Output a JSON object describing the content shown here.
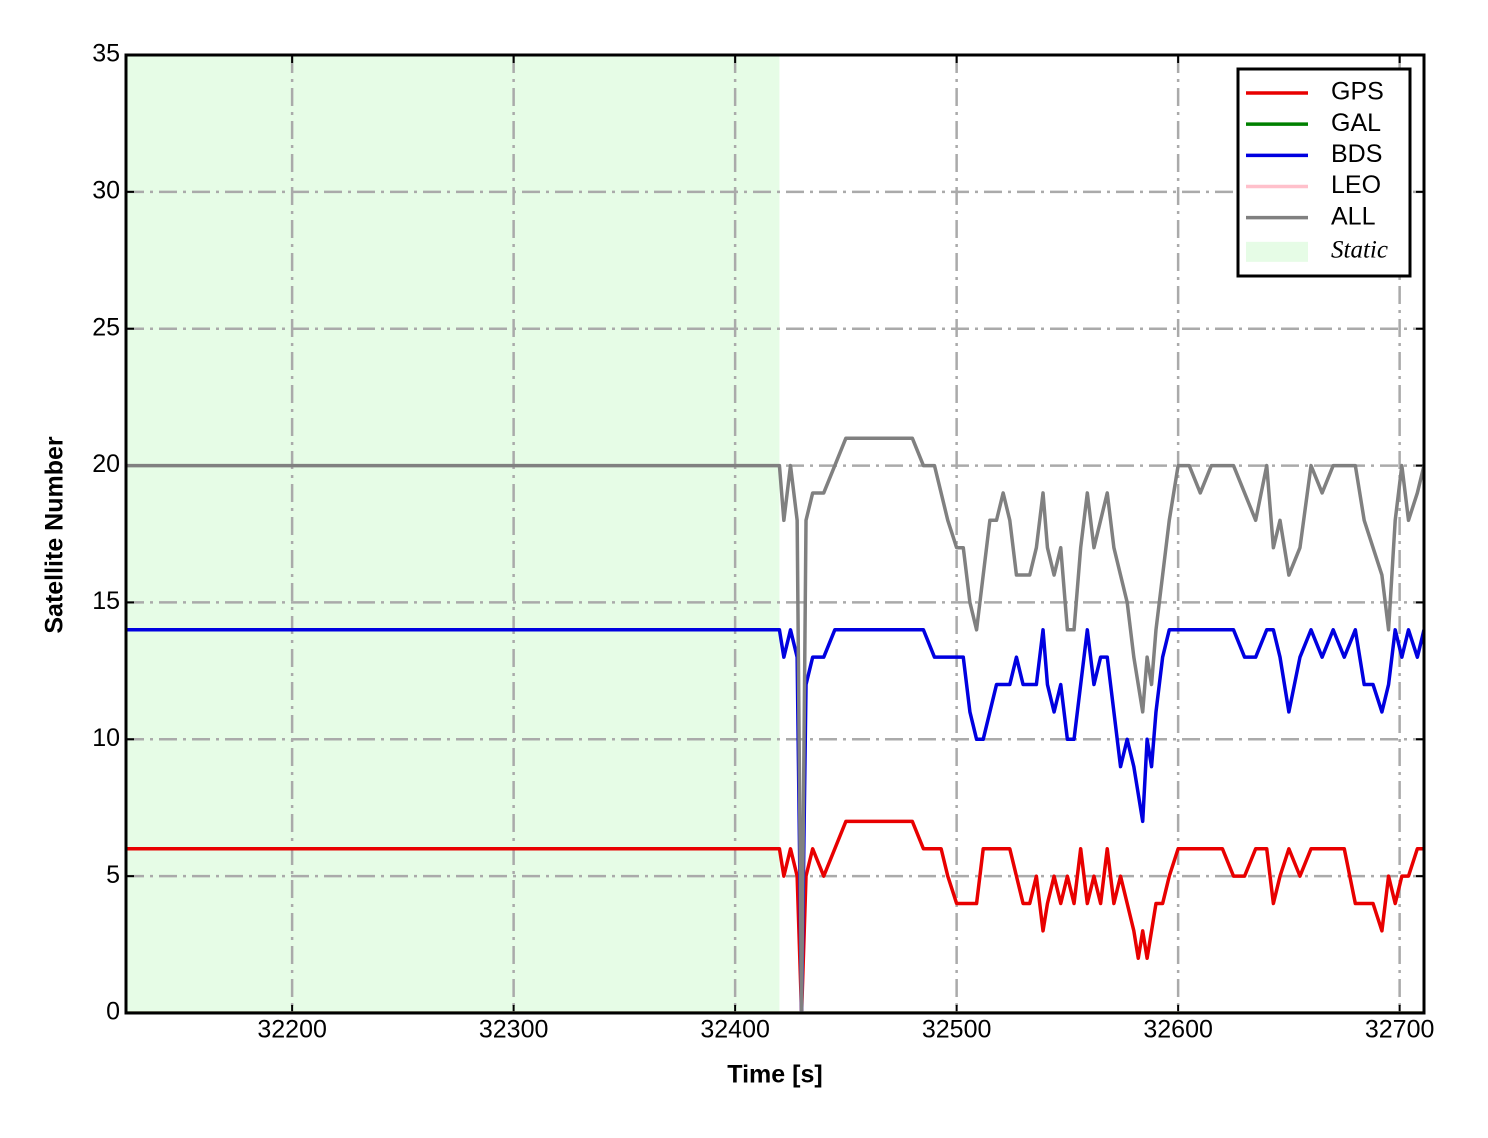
{
  "chart_data": {
    "type": "line",
    "xlabel": "Time [s]",
    "ylabel": "Satellite Number",
    "x": [
      32125,
      32420,
      32422,
      32425,
      32428,
      32430,
      32432,
      32435,
      32440,
      32445,
      32450,
      32455,
      32460,
      32470,
      32480,
      32485,
      32490,
      32493,
      32496,
      32500,
      32503,
      32506,
      32509,
      32512,
      32515,
      32518,
      32521,
      32524,
      32527,
      32530,
      32533,
      32536,
      32539,
      32541,
      32544,
      32547,
      32550,
      32553,
      32556,
      32559,
      32562,
      32565,
      32568,
      32571,
      32574,
      32577,
      32580,
      32582,
      32584,
      32586,
      32588,
      32590,
      32593,
      32596,
      32600,
      32605,
      32610,
      32615,
      32620,
      32625,
      32630,
      32635,
      32640,
      32643,
      32646,
      32650,
      32655,
      32660,
      32665,
      32670,
      32675,
      32680,
      32684,
      32688,
      32692,
      32695,
      32698,
      32701,
      32704,
      32708,
      32711
    ],
    "series": [
      {
        "name": "GPS",
        "color": "#e80000",
        "values": [
          6,
          6,
          5,
          6,
          5,
          0,
          5,
          6,
          5,
          6,
          7,
          7,
          7,
          7,
          7,
          6,
          6,
          6,
          5,
          4,
          4,
          4,
          4,
          6,
          6,
          6,
          6,
          6,
          5,
          4,
          4,
          5,
          3,
          4,
          5,
          4,
          5,
          4,
          6,
          4,
          5,
          4,
          6,
          4,
          5,
          4,
          3,
          2,
          3,
          2,
          3,
          4,
          4,
          5,
          6,
          6,
          6,
          6,
          6,
          5,
          5,
          6,
          6,
          4,
          5,
          6,
          5,
          6,
          6,
          6,
          6,
          4,
          4,
          4,
          3,
          5,
          4,
          5,
          5,
          6,
          6
        ]
      },
      {
        "name": "GAL",
        "color": "#008000",
        "values": [
          0,
          0,
          0,
          0,
          0,
          0,
          0,
          0,
          0,
          0,
          0,
          0,
          0,
          0,
          0,
          0,
          0,
          0,
          0,
          0,
          0,
          0,
          0,
          0,
          0,
          0,
          0,
          0,
          0,
          0,
          0,
          0,
          0,
          0,
          0,
          0,
          0,
          0,
          0,
          0,
          0,
          0,
          0,
          0,
          0,
          0,
          0,
          0,
          0,
          0,
          0,
          0,
          0,
          0,
          0,
          0,
          0,
          0,
          0,
          0,
          0,
          0,
          0,
          0,
          0,
          0,
          0,
          0,
          0,
          0,
          0,
          0,
          0,
          0,
          0,
          0,
          0,
          0,
          0,
          0,
          0
        ]
      },
      {
        "name": "BDS",
        "color": "#0000e0",
        "values": [
          14,
          14,
          13,
          14,
          13,
          0,
          12,
          13,
          13,
          14,
          14,
          14,
          14,
          14,
          14,
          14,
          13,
          13,
          13,
          13,
          13,
          11,
          10,
          10,
          11,
          12,
          12,
          12,
          13,
          12,
          12,
          12,
          14,
          12,
          11,
          12,
          10,
          10,
          12,
          14,
          12,
          13,
          13,
          11,
          9,
          10,
          9,
          8,
          7,
          10,
          9,
          11,
          13,
          14,
          14,
          14,
          14,
          14,
          14,
          14,
          13,
          13,
          14,
          14,
          13,
          11,
          13,
          14,
          13,
          14,
          13,
          14,
          12,
          12,
          11,
          12,
          14,
          13,
          14,
          13,
          14
        ]
      },
      {
        "name": "LEO",
        "color": "#ffc0cb",
        "values": [
          0,
          0,
          0,
          0,
          0,
          0,
          0,
          0,
          0,
          0,
          0,
          0,
          0,
          0,
          0,
          0,
          0,
          0,
          0,
          0,
          0,
          0,
          0,
          0,
          0,
          0,
          0,
          0,
          0,
          0,
          0,
          0,
          0,
          0,
          0,
          0,
          0,
          0,
          0,
          0,
          0,
          0,
          0,
          0,
          0,
          0,
          0,
          0,
          0,
          0,
          0,
          0,
          0,
          0,
          0,
          0,
          0,
          0,
          0,
          0,
          0,
          0,
          0,
          0,
          0,
          0,
          0,
          0,
          0,
          0,
          0,
          0,
          0,
          0,
          0,
          0,
          0,
          0,
          0,
          0,
          0
        ]
      },
      {
        "name": "ALL",
        "color": "#808080",
        "values": [
          20,
          20,
          18,
          20,
          18,
          0,
          18,
          19,
          19,
          20,
          21,
          21,
          21,
          21,
          21,
          20,
          20,
          19,
          18,
          17,
          17,
          15,
          14,
          16,
          18,
          18,
          19,
          18,
          16,
          16,
          16,
          17,
          19,
          17,
          16,
          17,
          14,
          14,
          17,
          19,
          17,
          18,
          19,
          17,
          16,
          15,
          13,
          12,
          11,
          13,
          12,
          14,
          16,
          18,
          20,
          20,
          19,
          20,
          20,
          20,
          19,
          18,
          20,
          17,
          18,
          16,
          17,
          20,
          19,
          20,
          20,
          20,
          18,
          17,
          16,
          14,
          18,
          20,
          18,
          19,
          20
        ]
      }
    ],
    "shaded_region": {
      "name": "Static",
      "color": "#e6fce6",
      "xlim": [
        32125,
        32420
      ]
    },
    "xlim": [
      32125,
      32711
    ],
    "ylim": [
      0,
      35
    ],
    "xticks": [
      32200,
      32300,
      32400,
      32500,
      32600,
      32700
    ],
    "yticks": [
      0,
      5,
      10,
      15,
      20,
      25,
      30,
      35
    ],
    "grid": true,
    "legend": "upper right"
  }
}
